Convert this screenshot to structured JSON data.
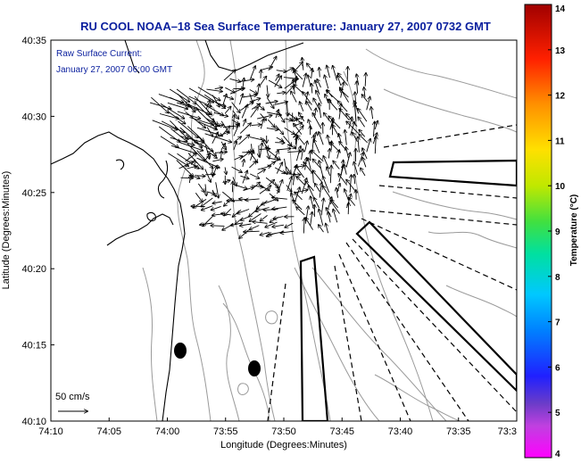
{
  "title": "RU COOL  NOAA–18  Sea Surface Temperature:  January 27, 2007 0732 GMT",
  "annotation": {
    "line1": "Raw Surface Current:",
    "line2": "January 27, 2007 06:00 GMT"
  },
  "scale_label": "50 cm/s",
  "colors": {
    "title": "#0a1f9e",
    "frame": "#000000",
    "contour": "#9a9a9a"
  },
  "chart_data": {
    "type": "map",
    "xlabel": "Longitude (Degrees:Minutes)",
    "ylabel": "Latitude (Degrees:Minutes)",
    "x_ticks": [
      "74:10",
      "74:05",
      "74:00",
      "73:55",
      "73:50",
      "73:45",
      "73:40",
      "73:35",
      "73:3"
    ],
    "y_ticks": [
      "40:10",
      "40:15",
      "40:20",
      "40:25",
      "40:30",
      "40:35"
    ],
    "colorbar": {
      "label": "Temperature (°C)",
      "range": [
        4,
        14
      ],
      "ticks": [
        "4",
        "5",
        "6",
        "7",
        "8",
        "9",
        "10",
        "11",
        "12",
        "13",
        "14"
      ]
    }
  }
}
